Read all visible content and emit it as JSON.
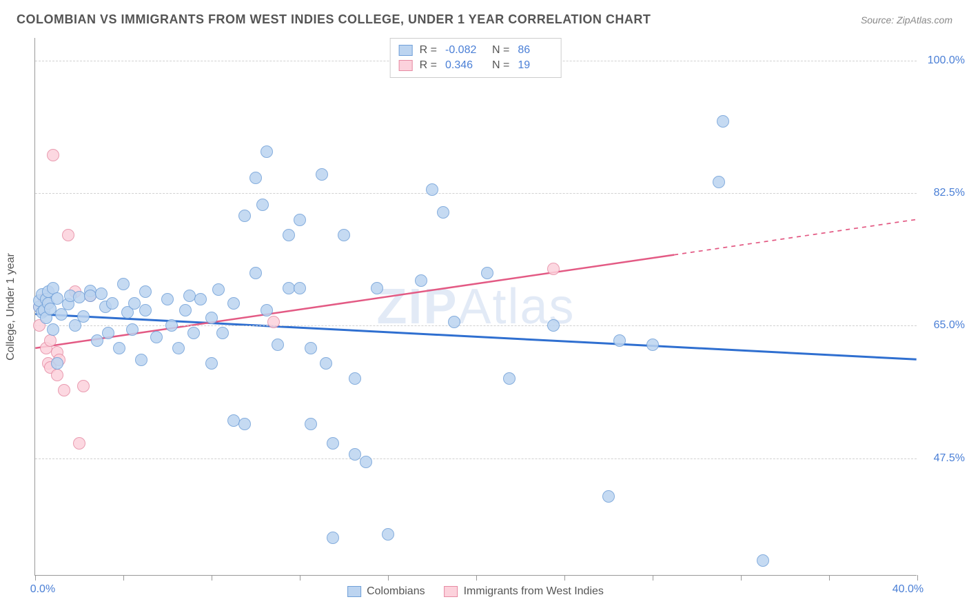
{
  "title": "COLOMBIAN VS IMMIGRANTS FROM WEST INDIES COLLEGE, UNDER 1 YEAR CORRELATION CHART",
  "source_label": "Source: ",
  "source_name": "ZipAtlas.com",
  "ylabel": "College, Under 1 year",
  "watermark": "ZIPAtlas",
  "chart": {
    "type": "scatter",
    "xlim": [
      0,
      40
    ],
    "ylim": [
      32,
      103
    ],
    "xtick_positions": [
      0,
      4,
      8,
      12,
      16,
      20,
      24,
      28,
      32,
      36,
      40
    ],
    "xtick_labels_shown": {
      "0": "0.0%",
      "40": "40.0%"
    },
    "ytick_positions": [
      47.5,
      65.0,
      82.5,
      100.0
    ],
    "ytick_labels": [
      "47.5%",
      "65.0%",
      "82.5%",
      "100.0%"
    ],
    "background_color": "#ffffff",
    "grid_color": "#d0d0d0",
    "point_radius": 9,
    "axis_color": "#999999"
  },
  "series": [
    {
      "name": "Colombians",
      "color_fill": "#bcd4f0",
      "color_stroke": "#6f9fd8",
      "R_label": "R =",
      "R": "-0.082",
      "N_label": "N =",
      "N": "86",
      "trend": {
        "y_at_x0": 66.5,
        "y_at_x40": 60.5,
        "color": "#2f6fd0",
        "width": 3,
        "solid_until_x": 40
      },
      "points": [
        [
          0.2,
          67.5
        ],
        [
          0.2,
          68.3
        ],
        [
          0.3,
          66.8
        ],
        [
          0.3,
          69.1
        ],
        [
          0.4,
          67.0
        ],
        [
          0.5,
          68.5
        ],
        [
          0.5,
          66.0
        ],
        [
          0.6,
          68.0
        ],
        [
          0.6,
          69.5
        ],
        [
          0.7,
          67.2
        ],
        [
          0.8,
          64.5
        ],
        [
          0.8,
          70.0
        ],
        [
          1.0,
          68.6
        ],
        [
          1.0,
          60.0
        ],
        [
          1.2,
          66.5
        ],
        [
          1.5,
          67.9
        ],
        [
          1.6,
          69.0
        ],
        [
          1.8,
          65.0
        ],
        [
          2.0,
          68.8
        ],
        [
          2.2,
          66.2
        ],
        [
          2.5,
          69.6
        ],
        [
          2.5,
          69.0
        ],
        [
          2.8,
          63.0
        ],
        [
          3.0,
          69.2
        ],
        [
          3.2,
          67.5
        ],
        [
          3.3,
          64.0
        ],
        [
          3.5,
          68.0
        ],
        [
          3.8,
          62.0
        ],
        [
          4.0,
          70.5
        ],
        [
          4.2,
          66.8
        ],
        [
          4.4,
          64.5
        ],
        [
          4.5,
          68.0
        ],
        [
          4.8,
          60.5
        ],
        [
          5.0,
          67.0
        ],
        [
          5.0,
          69.5
        ],
        [
          5.5,
          63.5
        ],
        [
          6.0,
          68.5
        ],
        [
          6.2,
          65.0
        ],
        [
          6.5,
          62.0
        ],
        [
          6.8,
          67.0
        ],
        [
          7.0,
          69.0
        ],
        [
          7.2,
          64.0
        ],
        [
          7.5,
          68.5
        ],
        [
          8.0,
          66.0
        ],
        [
          8.0,
          60.0
        ],
        [
          8.3,
          69.8
        ],
        [
          8.5,
          64.0
        ],
        [
          9.0,
          68.0
        ],
        [
          9.0,
          52.5
        ],
        [
          9.5,
          79.5
        ],
        [
          9.5,
          52.0
        ],
        [
          10.0,
          84.5
        ],
        [
          10.0,
          72.0
        ],
        [
          10.3,
          81.0
        ],
        [
          10.5,
          88.0
        ],
        [
          10.5,
          67.0
        ],
        [
          11.0,
          62.5
        ],
        [
          11.5,
          77.0
        ],
        [
          11.5,
          70.0
        ],
        [
          12.0,
          70.0
        ],
        [
          12.0,
          79.0
        ],
        [
          12.5,
          62.0
        ],
        [
          12.5,
          52.0
        ],
        [
          13.0,
          85.0
        ],
        [
          13.2,
          60.0
        ],
        [
          13.5,
          49.5
        ],
        [
          13.5,
          37.0
        ],
        [
          14.0,
          77.0
        ],
        [
          14.5,
          58.0
        ],
        [
          14.5,
          48.0
        ],
        [
          15.0,
          47.0
        ],
        [
          15.5,
          70.0
        ],
        [
          16.0,
          37.5
        ],
        [
          17.5,
          71.0
        ],
        [
          18.0,
          83.0
        ],
        [
          18.5,
          80.0
        ],
        [
          19.0,
          65.5
        ],
        [
          20.5,
          72.0
        ],
        [
          21.5,
          58.0
        ],
        [
          23.5,
          65.0
        ],
        [
          26.0,
          42.5
        ],
        [
          26.5,
          63.0
        ],
        [
          28.0,
          62.5
        ],
        [
          31.0,
          84.0
        ],
        [
          31.2,
          92.0
        ],
        [
          33.0,
          34.0
        ]
      ]
    },
    {
      "name": "Immigrants from West Indies",
      "color_fill": "#fcd2dc",
      "color_stroke": "#e68aa3",
      "R_label": "R =",
      "R": "0.346",
      "N_label": "N =",
      "N": "19",
      "trend": {
        "y_at_x0": 62.0,
        "y_at_x40": 79.0,
        "color": "#e35a84",
        "width": 2.5,
        "solid_until_x": 29
      },
      "points": [
        [
          0.2,
          65.0
        ],
        [
          0.2,
          67.5
        ],
        [
          0.4,
          68.5
        ],
        [
          0.5,
          62.0
        ],
        [
          0.6,
          60.0
        ],
        [
          0.7,
          63.0
        ],
        [
          0.7,
          59.5
        ],
        [
          0.8,
          87.5
        ],
        [
          1.0,
          61.5
        ],
        [
          1.0,
          58.5
        ],
        [
          1.1,
          60.5
        ],
        [
          1.3,
          56.5
        ],
        [
          1.5,
          77.0
        ],
        [
          1.8,
          69.5
        ],
        [
          2.0,
          49.5
        ],
        [
          2.2,
          57.0
        ],
        [
          2.5,
          69.0
        ],
        [
          10.8,
          65.5
        ],
        [
          23.5,
          72.5
        ]
      ]
    }
  ],
  "bottom_legend": [
    {
      "label": "Colombians",
      "fill": "#bcd4f0",
      "stroke": "#6f9fd8"
    },
    {
      "label": "Immigrants from West Indies",
      "fill": "#fcd2dc",
      "stroke": "#e68aa3"
    }
  ]
}
